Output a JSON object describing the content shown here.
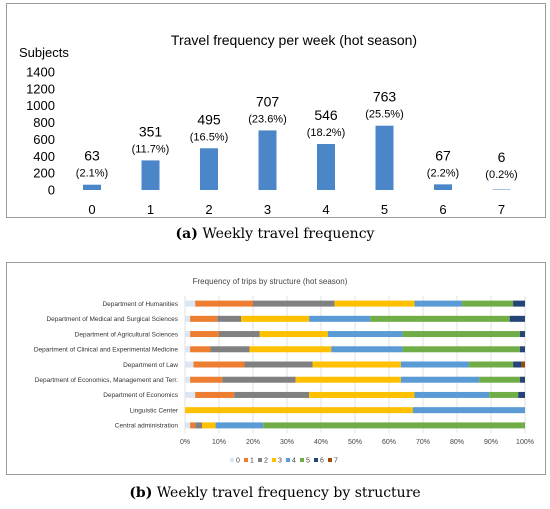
{
  "chart_data": [
    {
      "type": "bar",
      "title": "Travel frequency per week (hot season)",
      "ylabel": "Subjects",
      "xlabel": "",
      "categories": [
        "0",
        "1",
        "2",
        "3",
        "4",
        "5",
        "6",
        "7"
      ],
      "values": [
        63,
        351,
        495,
        707,
        546,
        763,
        67,
        6
      ],
      "percent_labels": [
        "(2.1%)",
        "(11.7%)",
        "(16.5%)",
        "(23.6%)",
        "(18.2%)",
        "(25.5%)",
        "(2.2%)",
        "(0.2%)"
      ],
      "ylim": [
        0,
        1400
      ],
      "yticks": [
        "1400",
        "1200",
        "1000",
        "800",
        "600",
        "400",
        "200",
        "0"
      ],
      "bar_color": "#4a86c8",
      "grid": false
    },
    {
      "type": "bar",
      "orientation": "horizontal",
      "stacked": "percent",
      "title": "Frequency of trips by structure (hot season)",
      "categories": [
        "Department of Humanities",
        "Department of Medical and Surgical Sciences",
        "Department of Agricultural Sciences",
        "Department of Clinical and Experimental Medicine",
        "Department of Law",
        "Department of Economics, Management and Terr.",
        "Department of Economics",
        "Linguistic Center",
        "Central administration"
      ],
      "series": [
        {
          "name": "0",
          "color": "#dce6f2",
          "values": [
            3,
            1.5,
            1.5,
            1.5,
            2.5,
            1.5,
            3,
            0,
            1.5
          ]
        },
        {
          "name": "1",
          "color": "#ed7d31",
          "values": [
            17,
            8,
            8.5,
            6,
            15,
            9.5,
            11.5,
            0,
            1.5
          ]
        },
        {
          "name": "2",
          "color": "#808080",
          "values": [
            24,
            7,
            12,
            11.5,
            20,
            21.5,
            22,
            0,
            2
          ]
        },
        {
          "name": "3",
          "color": "#ffc000",
          "values": [
            23.5,
            20,
            20,
            24,
            26,
            31,
            31,
            67,
            4
          ]
        },
        {
          "name": "4",
          "color": "#5b9bd5",
          "values": [
            14,
            18,
            22,
            21,
            20,
            23,
            22,
            33,
            14
          ]
        },
        {
          "name": "5",
          "color": "#70ad47",
          "values": [
            15,
            41,
            34.5,
            34.5,
            13,
            12,
            8.5,
            0,
            77
          ]
        },
        {
          "name": "6",
          "color": "#264478",
          "values": [
            3.5,
            4.5,
            1.5,
            1.5,
            2.5,
            1.5,
            2,
            0,
            0
          ]
        },
        {
          "name": "7",
          "color": "#9e480e",
          "values": [
            0,
            0,
            0,
            0,
            1,
            0,
            0,
            0,
            0
          ]
        }
      ],
      "xticks": [
        "0%",
        "10%",
        "20%",
        "30%",
        "40%",
        "50%",
        "60%",
        "70%",
        "80%",
        "90%",
        "100%"
      ],
      "xlim": [
        0,
        100
      ],
      "legend_position": "bottom",
      "grid": true
    }
  ],
  "captions": {
    "a_tag": "(a)",
    "a_text": " Weekly travel frequency",
    "b_tag": "(b)",
    "b_text": " Weekly travel frequency by structure"
  }
}
